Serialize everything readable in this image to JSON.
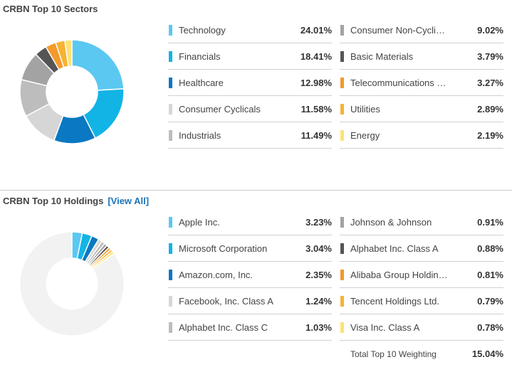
{
  "sectors": {
    "title": "CRBN Top 10 Sectors",
    "items": [
      {
        "label": "Technology",
        "value": "24.01%",
        "color": "#5bc8f2"
      },
      {
        "label": "Financials",
        "value": "18.41%",
        "color": "#12b4e6"
      },
      {
        "label": "Healthcare",
        "value": "12.98%",
        "color": "#0a78c2"
      },
      {
        "label": "Consumer Cyclicals",
        "value": "11.58%",
        "color": "#d6d6d6"
      },
      {
        "label": "Industrials",
        "value": "11.49%",
        "color": "#bdbdbd"
      },
      {
        "label": "Consumer Non-Cycli…",
        "value": "9.02%",
        "color": "#a3a3a3"
      },
      {
        "label": "Basic Materials",
        "value": "3.79%",
        "color": "#555555"
      },
      {
        "label": "Telecommunications …",
        "value": "3.27%",
        "color": "#f39a2b"
      },
      {
        "label": "Utilities",
        "value": "2.89%",
        "color": "#f7b234"
      },
      {
        "label": "Energy",
        "value": "2.19%",
        "color": "#fde273"
      }
    ]
  },
  "holdings": {
    "title": "CRBN Top 10 Holdings",
    "view_all": "[View All]",
    "items": [
      {
        "label": "Apple Inc.",
        "value": "3.23%",
        "color": "#5bc8f2"
      },
      {
        "label": "Microsoft Corporation",
        "value": "3.04%",
        "color": "#12b4e6"
      },
      {
        "label": "Amazon.com, Inc.",
        "value": "2.35%",
        "color": "#0a78c2"
      },
      {
        "label": "Facebook, Inc. Class A",
        "value": "1.24%",
        "color": "#d6d6d6"
      },
      {
        "label": "Alphabet Inc. Class C",
        "value": "1.03%",
        "color": "#bdbdbd"
      },
      {
        "label": "Johnson & Johnson",
        "value": "0.91%",
        "color": "#a3a3a3"
      },
      {
        "label": "Alphabet Inc. Class A",
        "value": "0.88%",
        "color": "#555555"
      },
      {
        "label": "Alibaba Group Holdin…",
        "value": "0.81%",
        "color": "#f39a2b"
      },
      {
        "label": "Tencent Holdings Ltd.",
        "value": "0.79%",
        "color": "#f7b234"
      },
      {
        "label": "Visa Inc. Class A",
        "value": "0.78%",
        "color": "#fde273"
      }
    ],
    "total_label": "Total Top 10 Weighting",
    "total_value": "15.04%",
    "remainder_color": "#f2f2f2"
  },
  "chart_data": [
    {
      "type": "pie",
      "categories": [
        "Technology",
        "Financials",
        "Healthcare",
        "Consumer Cyclicals",
        "Industrials",
        "Consumer Non-Cyclicals",
        "Basic Materials",
        "Telecommunications",
        "Utilities",
        "Energy"
      ],
      "values": [
        24.01,
        18.41,
        12.98,
        11.58,
        11.49,
        9.02,
        3.79,
        3.27,
        2.89,
        2.19
      ]
    },
    {
      "type": "pie",
      "categories": [
        "Apple Inc.",
        "Microsoft Corporation",
        "Amazon.com, Inc.",
        "Facebook, Inc. Class A",
        "Alphabet Inc. Class C",
        "Johnson & Johnson",
        "Alphabet Inc. Class A",
        "Alibaba Group Holding",
        "Tencent Holdings Ltd.",
        "Visa Inc. Class A"
      ],
      "values": [
        3.23,
        3.04,
        2.35,
        1.24,
        1.03,
        0.91,
        0.88,
        0.81,
        0.79,
        0.78
      ]
    }
  ]
}
